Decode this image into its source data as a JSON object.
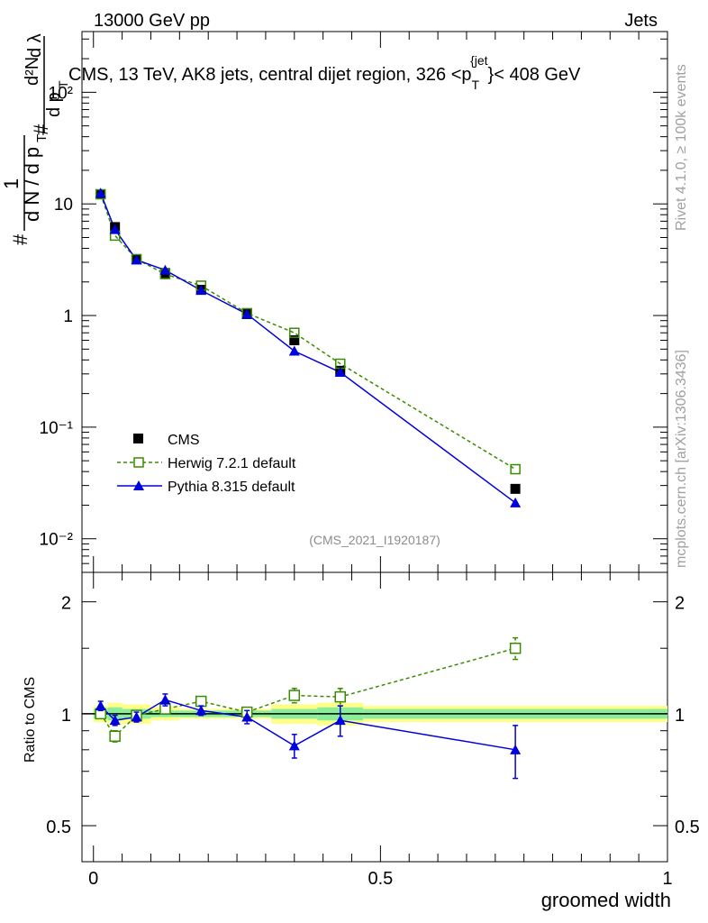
{
  "header": {
    "energy_label": "13000 GeV pp",
    "category_label": "Jets"
  },
  "side_labels": {
    "rivet": "Rivet 4.1.0, ≥ 100k events",
    "mcplots": "mcplots.cern.ch [arXiv:1306.3436]"
  },
  "chart_data": [
    {
      "type": "line",
      "title": "CMS, 13 TeV, AK8 jets, central dijet region, 326 <p_T^{jet}< 408 GeV",
      "title_parts": {
        "main": "CMS, 13 TeV, AK8 jets, central dijet region, 326 <p",
        "sub": "T",
        "sup": "{jet",
        "end": "}< 408 GeV"
      },
      "ylabel": "1/(dN/dp_T) · d²N/(dp_T dλ)",
      "ylabel_parts": {
        "hash": "#",
        "one": "1",
        "dn": "d N / d p",
        "t": "T",
        "d2n": "d²N",
        "dpt": "d p",
        "dl": "d λ"
      },
      "yscale": "log",
      "ylim": [
        0.005,
        350
      ],
      "xlim": [
        -0.02,
        1.0
      ],
      "ytick_labels": [
        "10⁻²",
        "10⁻¹",
        "1",
        "10",
        "10²"
      ],
      "watermark": "(CMS_2021_I1920187)",
      "legend_position": "center-left",
      "x": [
        0.0125,
        0.0375,
        0.075,
        0.125,
        0.1875,
        0.2675,
        0.35,
        0.43,
        0.735
      ],
      "series": [
        {
          "name": "CMS",
          "color": "#000000",
          "marker": "square-filled",
          "values": [
            12.2,
            6.2,
            3.2,
            2.4,
            1.7,
            1.03,
            0.6,
            0.32,
            0.028
          ]
        },
        {
          "name": "Herwig 7.2.1 default",
          "color": "#3a8c00",
          "marker": "square-open",
          "dashed": true,
          "values": [
            12.2,
            5.2,
            3.2,
            2.35,
            1.85,
            1.05,
            0.7,
            0.37,
            0.042
          ]
        },
        {
          "name": "Pythia 8.315 default",
          "color": "#0000dd",
          "marker": "triangle-filled",
          "values": [
            12.5,
            5.9,
            3.15,
            2.55,
            1.68,
            1.03,
            0.48,
            0.31,
            0.021
          ]
        }
      ]
    },
    {
      "type": "line",
      "ylabel": "Ratio to CMS",
      "xlabel": "groomed width",
      "ylim": [
        0.4,
        2.4
      ],
      "xlim": [
        -0.02,
        1.0
      ],
      "ytick_labels": [
        "0.5",
        "1",
        "2"
      ],
      "xtick_labels": [
        "0",
        "0.5",
        "1"
      ],
      "band_edges": [
        0.0,
        0.025,
        0.05,
        0.1,
        0.15,
        0.225,
        0.31,
        0.39,
        0.47,
        1.0
      ],
      "band_stat": [
        0.03,
        0.04,
        0.03,
        0.02,
        0.02,
        0.02,
        0.03,
        0.04,
        0.03
      ],
      "band_total": [
        0.05,
        0.07,
        0.06,
        0.04,
        0.03,
        0.03,
        0.06,
        0.07,
        0.05
      ],
      "series": [
        {
          "name": "Herwig 7.2.1 default",
          "color": "#3a8c00",
          "values": [
            1.0,
            0.87,
            0.99,
            1.03,
            1.08,
            1.01,
            1.12,
            1.11,
            1.5
          ],
          "errors": [
            0.02,
            0.03,
            0.02,
            0.03,
            0.03,
            0.03,
            0.05,
            0.06,
            0.1
          ]
        },
        {
          "name": "Pythia 8.315 default",
          "color": "#0000dd",
          "values": [
            1.05,
            0.96,
            0.98,
            1.09,
            1.02,
            0.98,
            0.82,
            0.96,
            0.8
          ],
          "errors": [
            0.03,
            0.03,
            0.03,
            0.04,
            0.03,
            0.04,
            0.06,
            0.09,
            0.13
          ]
        }
      ]
    }
  ]
}
